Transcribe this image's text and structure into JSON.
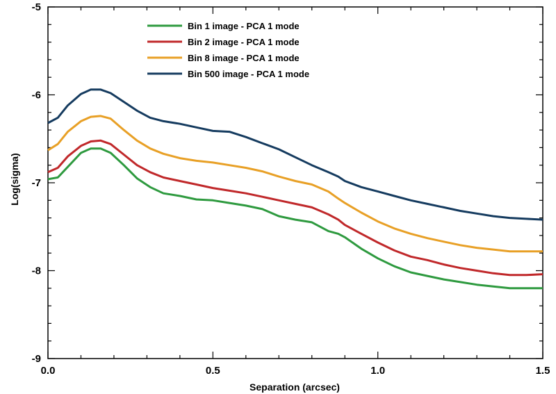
{
  "chart_data": {
    "type": "line",
    "xlabel": "Separation (arcsec)",
    "ylabel": "Log(sigma)",
    "xlim": [
      0.0,
      1.5
    ],
    "ylim": [
      -9,
      -5
    ],
    "xticks": [
      "0.0",
      "0.5",
      "1.0",
      "1.5"
    ],
    "yticks": [
      "-9",
      "-8",
      "-7",
      "-6",
      "-5"
    ],
    "grid": false,
    "legend_position": "top-center",
    "x": [
      0.0,
      0.03,
      0.06,
      0.1,
      0.13,
      0.16,
      0.19,
      0.23,
      0.27,
      0.31,
      0.35,
      0.4,
      0.45,
      0.5,
      0.55,
      0.6,
      0.65,
      0.7,
      0.75,
      0.8,
      0.85,
      0.88,
      0.9,
      0.95,
      1.0,
      1.05,
      1.1,
      1.15,
      1.2,
      1.25,
      1.3,
      1.35,
      1.4,
      1.45,
      1.5
    ],
    "series": [
      {
        "name": "Bin 1 image - PCA 1 mode",
        "color": "#2e9a3f",
        "values": [
          -6.96,
          -6.94,
          -6.82,
          -6.66,
          -6.61,
          -6.61,
          -6.66,
          -6.8,
          -6.95,
          -7.05,
          -7.12,
          -7.15,
          -7.19,
          -7.2,
          -7.23,
          -7.26,
          -7.3,
          -7.38,
          -7.42,
          -7.45,
          -7.55,
          -7.58,
          -7.62,
          -7.75,
          -7.86,
          -7.95,
          -8.02,
          -8.06,
          -8.1,
          -8.13,
          -8.16,
          -8.18,
          -8.2,
          -8.2,
          -8.2
        ]
      },
      {
        "name": "Bin 2 image - PCA 1 mode",
        "color": "#c0282a",
        "values": [
          -6.88,
          -6.83,
          -6.7,
          -6.58,
          -6.53,
          -6.52,
          -6.56,
          -6.68,
          -6.8,
          -6.88,
          -6.94,
          -6.98,
          -7.02,
          -7.06,
          -7.09,
          -7.12,
          -7.16,
          -7.2,
          -7.24,
          -7.28,
          -7.36,
          -7.42,
          -7.48,
          -7.58,
          -7.68,
          -7.77,
          -7.84,
          -7.88,
          -7.93,
          -7.97,
          -8.0,
          -8.03,
          -8.05,
          -8.05,
          -8.04
        ]
      },
      {
        "name": "Bin 8 image - PCA 1 mode",
        "color": "#e8a026",
        "values": [
          -6.63,
          -6.56,
          -6.42,
          -6.3,
          -6.25,
          -6.24,
          -6.27,
          -6.4,
          -6.52,
          -6.61,
          -6.67,
          -6.72,
          -6.75,
          -6.77,
          -6.8,
          -6.83,
          -6.87,
          -6.93,
          -6.98,
          -7.02,
          -7.1,
          -7.18,
          -7.23,
          -7.34,
          -7.44,
          -7.52,
          -7.58,
          -7.63,
          -7.67,
          -7.71,
          -7.74,
          -7.76,
          -7.78,
          -7.78,
          -7.78
        ]
      },
      {
        "name": "Bin 500 image - PCA 1 mode",
        "color": "#153b5f",
        "values": [
          -6.32,
          -6.26,
          -6.12,
          -5.99,
          -5.94,
          -5.94,
          -5.98,
          -6.08,
          -6.18,
          -6.26,
          -6.3,
          -6.33,
          -6.37,
          -6.41,
          -6.42,
          -6.48,
          -6.55,
          -6.62,
          -6.71,
          -6.8,
          -6.88,
          -6.93,
          -6.98,
          -7.05,
          -7.1,
          -7.15,
          -7.2,
          -7.24,
          -7.28,
          -7.32,
          -7.35,
          -7.38,
          -7.4,
          -7.41,
          -7.42
        ]
      }
    ]
  }
}
